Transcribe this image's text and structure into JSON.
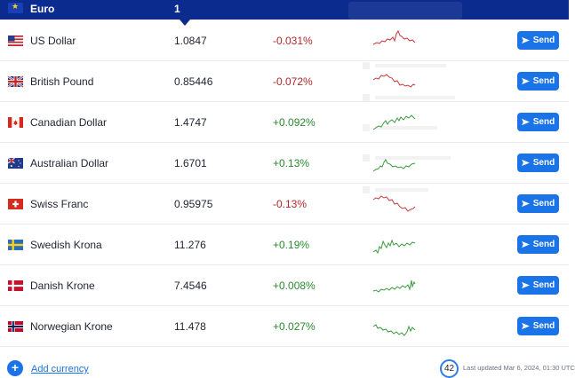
{
  "base": {
    "name": "Euro",
    "value": "1"
  },
  "send_label": "Send",
  "rows": [
    {
      "name": "US Dollar",
      "rate": "1.0847",
      "change": "-0.031%",
      "trend": "neg",
      "flag": "us-flag"
    },
    {
      "name": "British Pound",
      "rate": "0.85446",
      "change": "-0.072%",
      "trend": "neg",
      "flag": "uk-flag"
    },
    {
      "name": "Canadian Dollar",
      "rate": "1.4747",
      "change": "+0.092%",
      "trend": "pos",
      "flag": "canada-flag"
    },
    {
      "name": "Australian Dollar",
      "rate": "1.6701",
      "change": "+0.13%",
      "trend": "pos",
      "flag": "australia-flag"
    },
    {
      "name": "Swiss Franc",
      "rate": "0.95975",
      "change": "-0.13%",
      "trend": "neg",
      "flag": "switzerland-flag"
    },
    {
      "name": "Swedish Krona",
      "rate": "11.276",
      "change": "+0.19%",
      "trend": "pos",
      "flag": "sweden-flag"
    },
    {
      "name": "Danish Krone",
      "rate": "7.4546",
      "change": "+0.008%",
      "trend": "pos",
      "flag": "denmark-flag"
    },
    {
      "name": "Norwegian Krone",
      "rate": "11.478",
      "change": "+0.027%",
      "trend": "pos",
      "flag": "norway-flag"
    }
  ],
  "footer": {
    "add_label": "Add currency",
    "countdown": "42",
    "updated": "Last updated Mar 6, 2024, 01:30 UTC"
  },
  "colors": {
    "header": "#0b2b8f",
    "accent": "#1b73e8",
    "negative": "#b3262a",
    "positive": "#2a8a2f"
  }
}
